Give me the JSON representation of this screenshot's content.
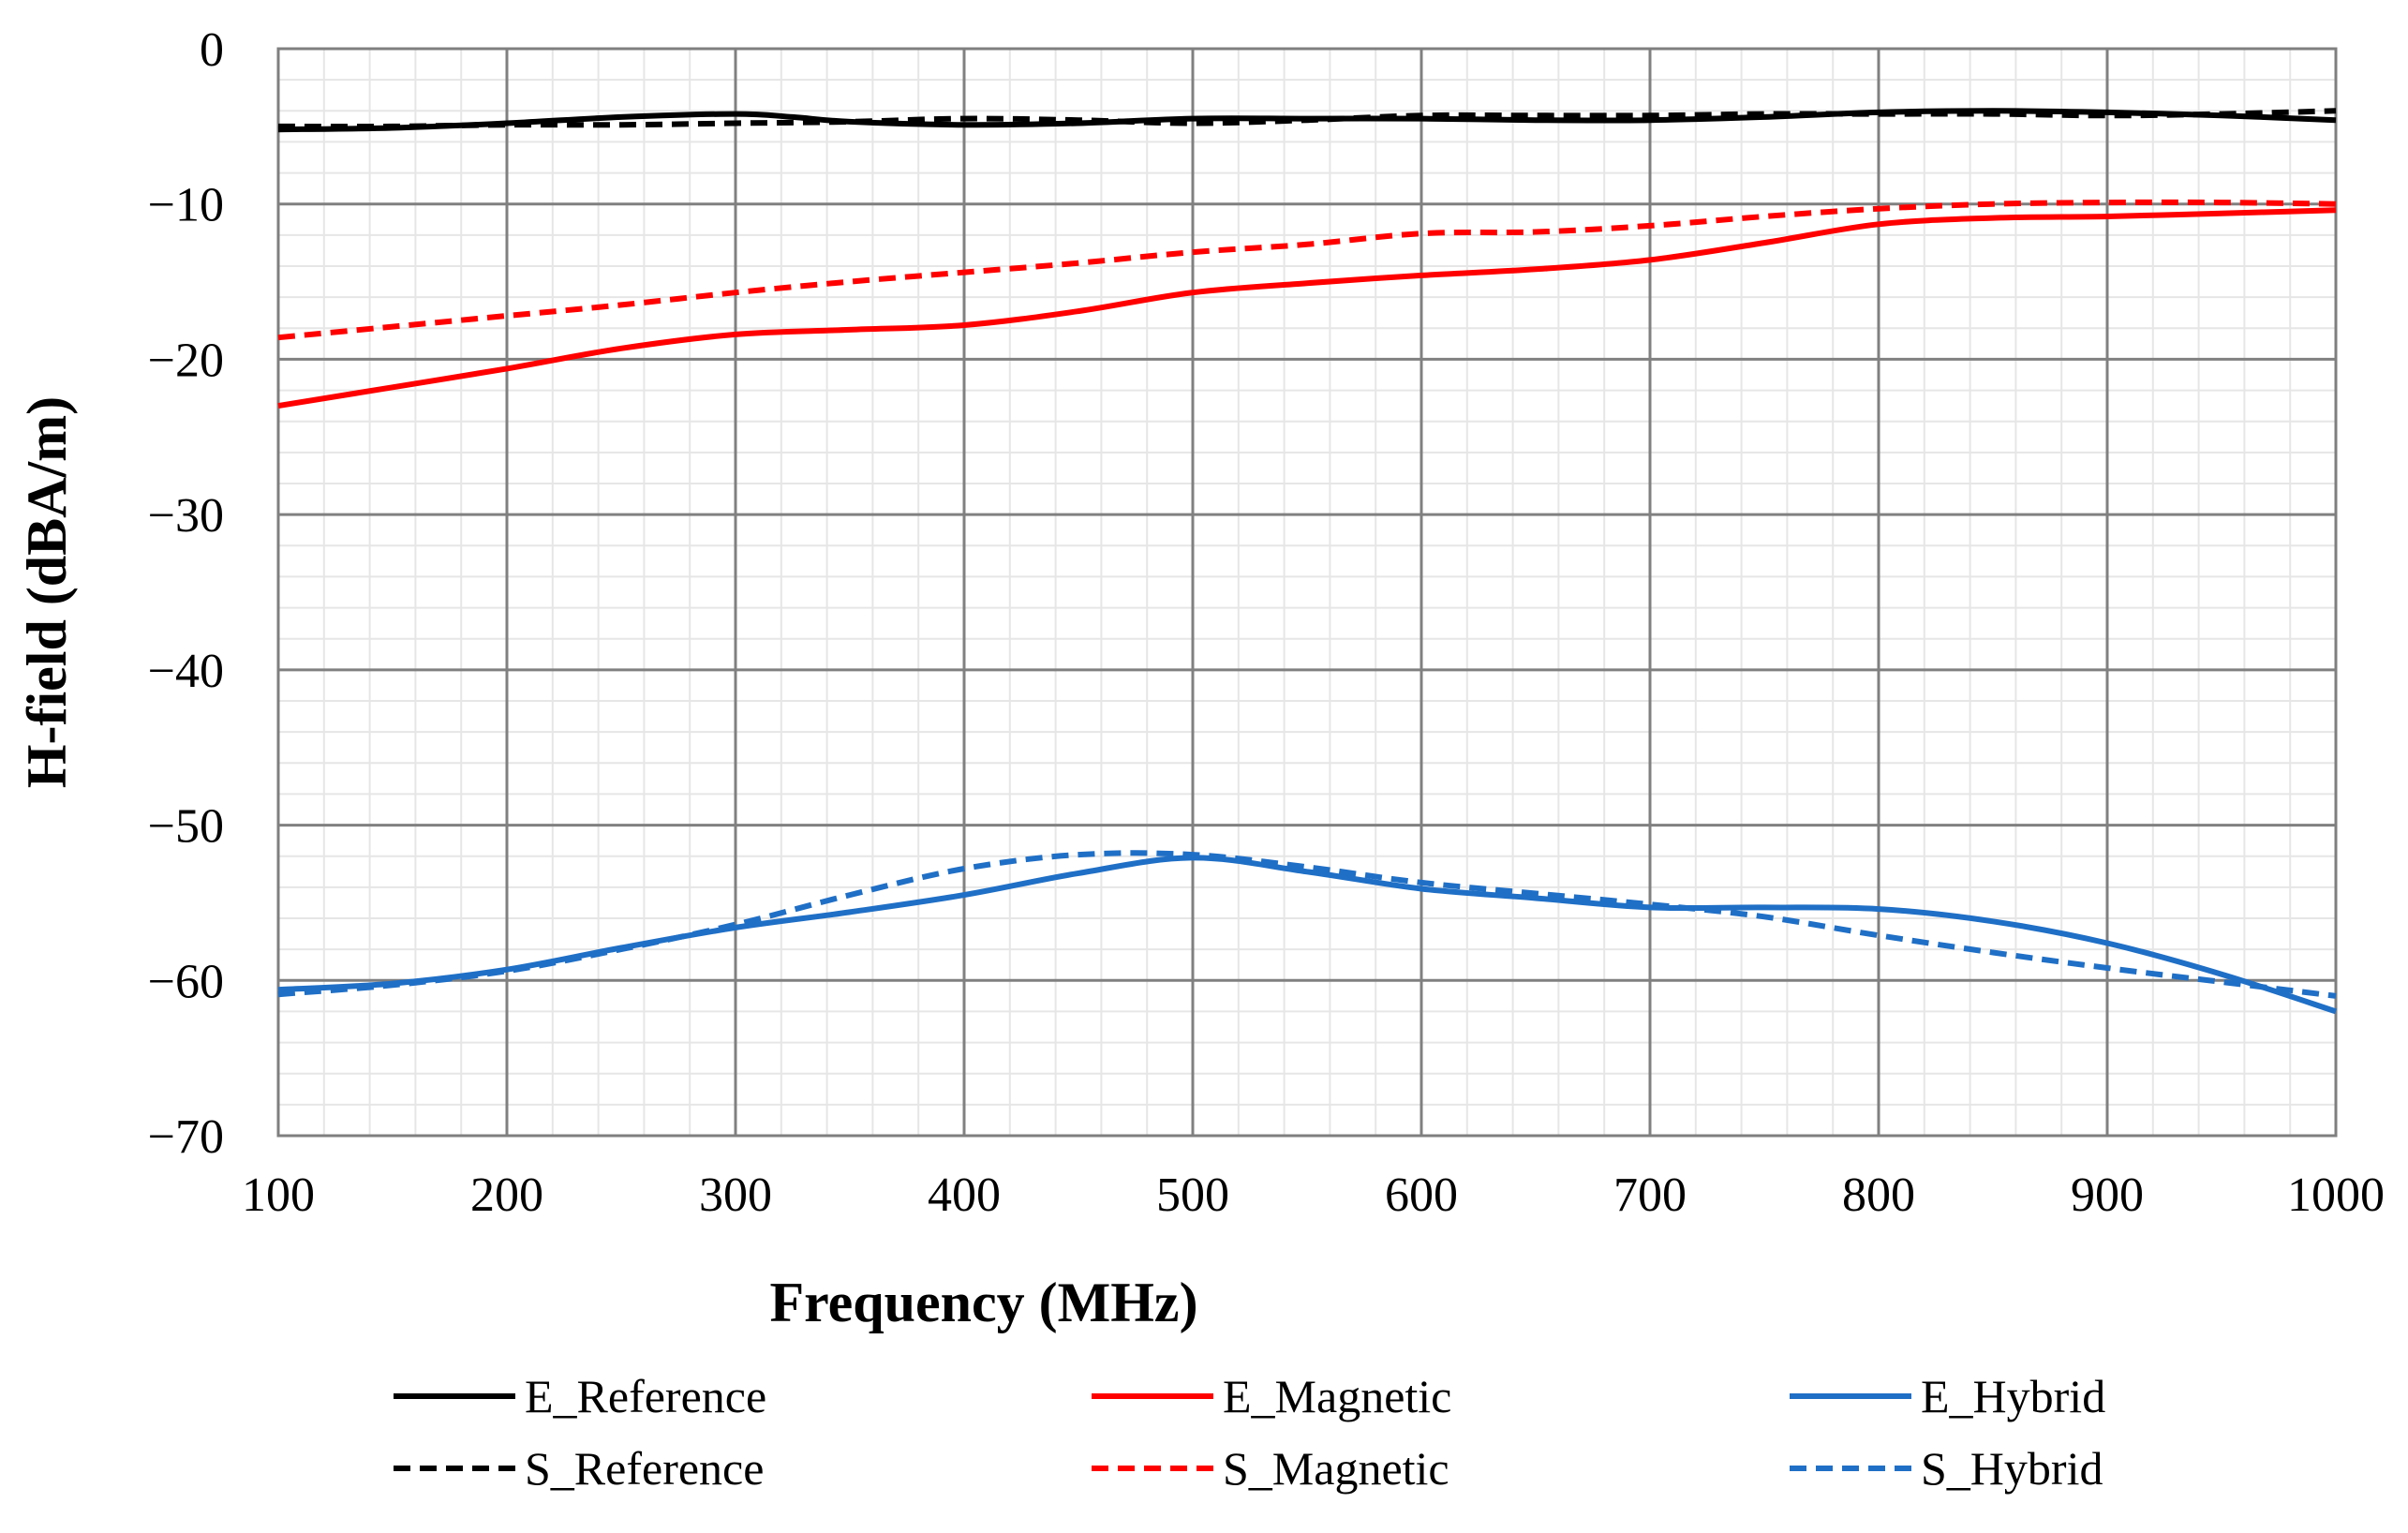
{
  "chart_data": {
    "type": "line",
    "title": "",
    "xlabel": "Frequency (MHz)",
    "ylabel": "H-field (dBA/m)",
    "xlim": [
      100,
      1000
    ],
    "ylim": [
      -70,
      0
    ],
    "xticks": [
      100,
      200,
      300,
      400,
      500,
      600,
      700,
      800,
      900,
      1000
    ],
    "yticks": [
      0,
      -10,
      -20,
      -30,
      -40,
      -50,
      -60,
      -70
    ],
    "xtick_labels": [
      "100",
      "200",
      "300",
      "400",
      "500",
      "600",
      "700",
      "800",
      "900",
      "1000"
    ],
    "ytick_labels": [
      "0",
      "−10",
      "−20",
      "−30",
      "−40",
      "−50",
      "−60",
      "−70"
    ],
    "grid": "major and minor",
    "legend_position": "bottom",
    "series": [
      {
        "name": "E_Reference",
        "color": "#000000",
        "dash": "solid",
        "points": [
          [
            100,
            -5.2
          ],
          [
            150,
            -5.1
          ],
          [
            200,
            -4.8
          ],
          [
            250,
            -4.4
          ],
          [
            300,
            -4.2
          ],
          [
            325,
            -4.4
          ],
          [
            350,
            -4.7
          ],
          [
            400,
            -4.9
          ],
          [
            450,
            -4.8
          ],
          [
            500,
            -4.5
          ],
          [
            550,
            -4.5
          ],
          [
            600,
            -4.5
          ],
          [
            650,
            -4.6
          ],
          [
            700,
            -4.6
          ],
          [
            750,
            -4.4
          ],
          [
            800,
            -4.1
          ],
          [
            850,
            -4.0
          ],
          [
            900,
            -4.1
          ],
          [
            950,
            -4.3
          ],
          [
            1000,
            -4.6
          ]
        ]
      },
      {
        "name": "S_Reference",
        "color": "#000000",
        "dash": "dashed",
        "points": [
          [
            100,
            -5.0
          ],
          [
            150,
            -5.0
          ],
          [
            200,
            -4.9
          ],
          [
            250,
            -4.9
          ],
          [
            300,
            -4.8
          ],
          [
            350,
            -4.7
          ],
          [
            400,
            -4.5
          ],
          [
            450,
            -4.6
          ],
          [
            500,
            -4.8
          ],
          [
            550,
            -4.6
          ],
          [
            600,
            -4.3
          ],
          [
            650,
            -4.3
          ],
          [
            700,
            -4.3
          ],
          [
            750,
            -4.2
          ],
          [
            800,
            -4.2
          ],
          [
            850,
            -4.2
          ],
          [
            900,
            -4.3
          ],
          [
            950,
            -4.2
          ],
          [
            1000,
            -4.0
          ]
        ]
      },
      {
        "name": "E_Magnetic",
        "color": "#ff0000",
        "dash": "solid",
        "points": [
          [
            100,
            -23.0
          ],
          [
            150,
            -21.8
          ],
          [
            200,
            -20.6
          ],
          [
            250,
            -19.3
          ],
          [
            300,
            -18.4
          ],
          [
            350,
            -18.1
          ],
          [
            400,
            -17.8
          ],
          [
            450,
            -16.9
          ],
          [
            500,
            -15.7
          ],
          [
            550,
            -15.1
          ],
          [
            600,
            -14.6
          ],
          [
            650,
            -14.2
          ],
          [
            700,
            -13.6
          ],
          [
            750,
            -12.5
          ],
          [
            800,
            -11.3
          ],
          [
            850,
            -10.9
          ],
          [
            900,
            -10.8
          ],
          [
            950,
            -10.6
          ],
          [
            1000,
            -10.4
          ]
        ]
      },
      {
        "name": "S_Magnetic",
        "color": "#ff0000",
        "dash": "dashed",
        "points": [
          [
            100,
            -18.6
          ],
          [
            150,
            -17.9
          ],
          [
            200,
            -17.2
          ],
          [
            250,
            -16.5
          ],
          [
            300,
            -15.7
          ],
          [
            350,
            -15.0
          ],
          [
            400,
            -14.4
          ],
          [
            450,
            -13.8
          ],
          [
            500,
            -13.1
          ],
          [
            550,
            -12.6
          ],
          [
            600,
            -11.9
          ],
          [
            650,
            -11.8
          ],
          [
            700,
            -11.4
          ],
          [
            750,
            -10.8
          ],
          [
            800,
            -10.3
          ],
          [
            850,
            -10.0
          ],
          [
            900,
            -9.9
          ],
          [
            950,
            -9.9
          ],
          [
            1000,
            -10.0
          ]
        ]
      },
      {
        "name": "E_Hybrid",
        "color": "#1f6fc6",
        "dash": "solid",
        "points": [
          [
            100,
            -60.6
          ],
          [
            150,
            -60.2
          ],
          [
            200,
            -59.3
          ],
          [
            250,
            -57.9
          ],
          [
            300,
            -56.6
          ],
          [
            350,
            -55.6
          ],
          [
            400,
            -54.5
          ],
          [
            450,
            -53.1
          ],
          [
            500,
            -52.1
          ],
          [
            550,
            -53.0
          ],
          [
            600,
            -54.1
          ],
          [
            650,
            -54.7
          ],
          [
            700,
            -55.3
          ],
          [
            750,
            -55.3
          ],
          [
            800,
            -55.4
          ],
          [
            850,
            -56.2
          ],
          [
            900,
            -57.6
          ],
          [
            950,
            -59.6
          ],
          [
            1000,
            -62.0
          ]
        ]
      },
      {
        "name": "S_Hybrid",
        "color": "#1f6fc6",
        "dash": "dashed",
        "points": [
          [
            100,
            -60.9
          ],
          [
            150,
            -60.3
          ],
          [
            200,
            -59.4
          ],
          [
            250,
            -58.0
          ],
          [
            300,
            -56.4
          ],
          [
            350,
            -54.5
          ],
          [
            400,
            -52.8
          ],
          [
            450,
            -51.9
          ],
          [
            500,
            -51.9
          ],
          [
            550,
            -52.7
          ],
          [
            600,
            -53.7
          ],
          [
            650,
            -54.4
          ],
          [
            700,
            -55.1
          ],
          [
            750,
            -55.9
          ],
          [
            800,
            -57.1
          ],
          [
            850,
            -58.2
          ],
          [
            900,
            -59.2
          ],
          [
            950,
            -60.1
          ],
          [
            1000,
            -61.0
          ]
        ]
      }
    ]
  }
}
